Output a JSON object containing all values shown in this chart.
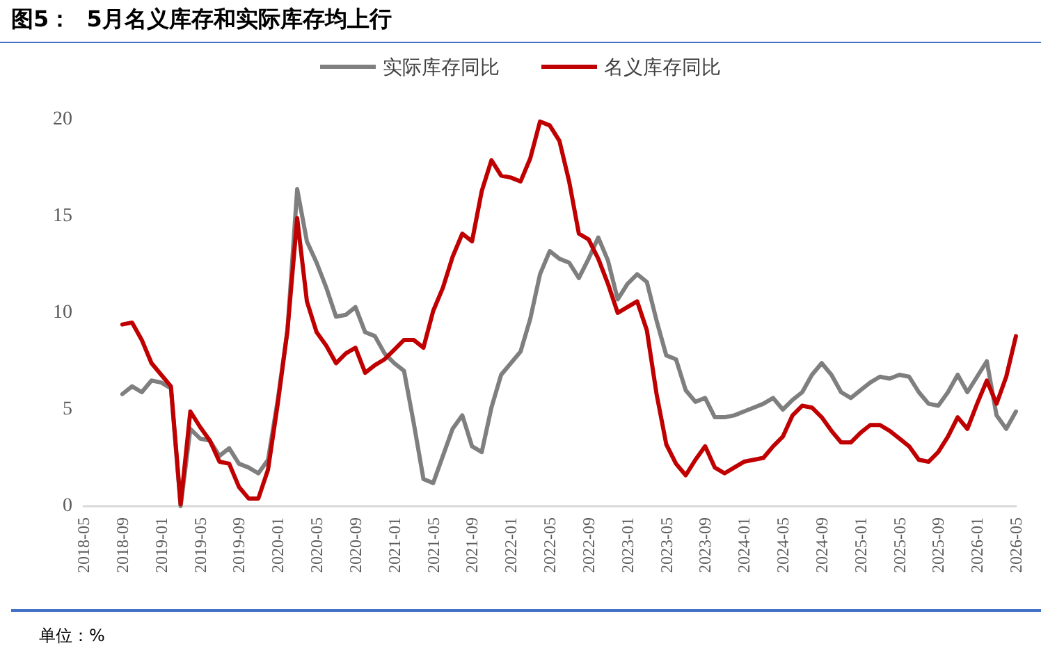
{
  "chart_data": {
    "type": "line",
    "title": "图5：  5月名义库存和实际库存均上行",
    "annotations": [
      "单位：%"
    ],
    "categories": [
      "2018-05",
      null,
      null,
      null,
      "2018-09",
      null,
      null,
      null,
      "2019-01",
      null,
      null,
      null,
      "2019-05",
      null,
      null,
      null,
      "2019-09",
      null,
      null,
      null,
      "2020-01",
      null,
      null,
      null,
      "2020-05",
      null,
      null,
      null,
      "2020-09",
      null,
      null,
      null,
      "2021-01",
      null,
      null,
      null,
      "2021-05",
      null,
      null,
      null,
      "2021-09",
      null,
      null,
      null,
      "2022-01",
      null,
      null,
      null,
      "2022-05",
      null,
      null,
      null,
      "2022-09",
      null,
      null,
      null,
      "2023-01",
      null,
      null,
      null,
      "2023-05",
      null,
      null,
      null,
      "2023-09",
      null,
      null,
      null,
      "2024-01",
      null,
      null,
      null,
      "2024-05",
      null,
      null,
      null,
      "2024-09",
      null,
      null,
      null,
      "2025-01",
      null,
      null,
      null,
      "2025-05",
      null,
      null,
      null,
      "2025-09",
      null,
      null,
      null,
      "2026-01",
      null,
      null,
      null,
      "2026-05"
    ],
    "series": [
      {
        "name": "实际库存同比",
        "color": "#7f7f7f",
        "values": [
          null,
          null,
          null,
          null,
          5.8,
          6.2,
          5.9,
          6.5,
          6.4,
          6.1,
          0,
          4.0,
          3.5,
          3.4,
          2.6,
          3.0,
          2.2,
          2.0,
          1.7,
          2.4,
          5.5,
          9.1,
          16.4,
          13.7,
          12.6,
          11.3,
          9.8,
          9.9,
          10.3,
          9.0,
          8.8,
          7.9,
          7.4,
          7.0,
          4.3,
          1.4,
          1.2,
          2.6,
          4.0,
          4.7,
          3.1,
          2.8,
          5.1,
          6.8,
          7.4,
          8.0,
          9.7,
          12.0,
          13.2,
          12.8,
          12.6,
          11.8,
          12.8,
          13.9,
          12.7,
          10.7,
          11.5,
          12.0,
          11.6,
          9.6,
          7.8,
          7.6,
          6.0,
          5.4,
          5.6,
          4.6,
          4.6,
          4.7,
          4.9,
          5.1,
          5.3,
          5.6,
          5.0,
          5.5,
          5.9,
          6.8,
          7.4,
          6.8,
          5.9,
          5.6,
          6.0,
          6.4,
          6.7,
          6.6,
          6.8,
          6.7,
          5.9,
          5.3,
          5.2,
          5.9,
          6.8,
          5.9,
          6.7,
          7.5,
          4.7,
          4.0,
          4.9
        ]
      },
      {
        "name": "名义库存同比",
        "color": "#c00000",
        "values": [
          null,
          null,
          null,
          null,
          9.4,
          9.5,
          8.6,
          7.4,
          6.8,
          6.2,
          0.1,
          4.9,
          4.1,
          3.4,
          2.3,
          2.2,
          1.0,
          0.4,
          0.4,
          1.9,
          5.3,
          9.1,
          14.9,
          10.6,
          9.0,
          8.3,
          7.4,
          7.9,
          8.2,
          6.9,
          7.3,
          7.6,
          8.1,
          8.6,
          8.6,
          8.2,
          10.1,
          11.3,
          12.9,
          14.1,
          13.7,
          16.3,
          17.9,
          17.1,
          17.0,
          16.8,
          18.0,
          19.9,
          19.7,
          18.9,
          16.8,
          14.1,
          13.8,
          12.8,
          11.5,
          10.0,
          10.3,
          10.6,
          9.1,
          5.8,
          3.2,
          2.2,
          1.6,
          2.4,
          3.1,
          2.0,
          1.7,
          2.0,
          2.3,
          2.4,
          2.5,
          3.1,
          3.6,
          4.7,
          5.2,
          5.1,
          4.6,
          3.9,
          3.3,
          3.3,
          3.8,
          4.2,
          4.2,
          3.9,
          3.5,
          3.1,
          2.4,
          2.3,
          2.8,
          3.6,
          4.6,
          4.0,
          5.3,
          6.5,
          5.3,
          6.7,
          8.8
        ]
      }
    ],
    "ylim": [
      0,
      20
    ],
    "yticks": [
      0,
      5,
      10,
      15,
      20
    ],
    "grid": false,
    "legend": "top",
    "marker": "none",
    "line_style": "solid"
  }
}
